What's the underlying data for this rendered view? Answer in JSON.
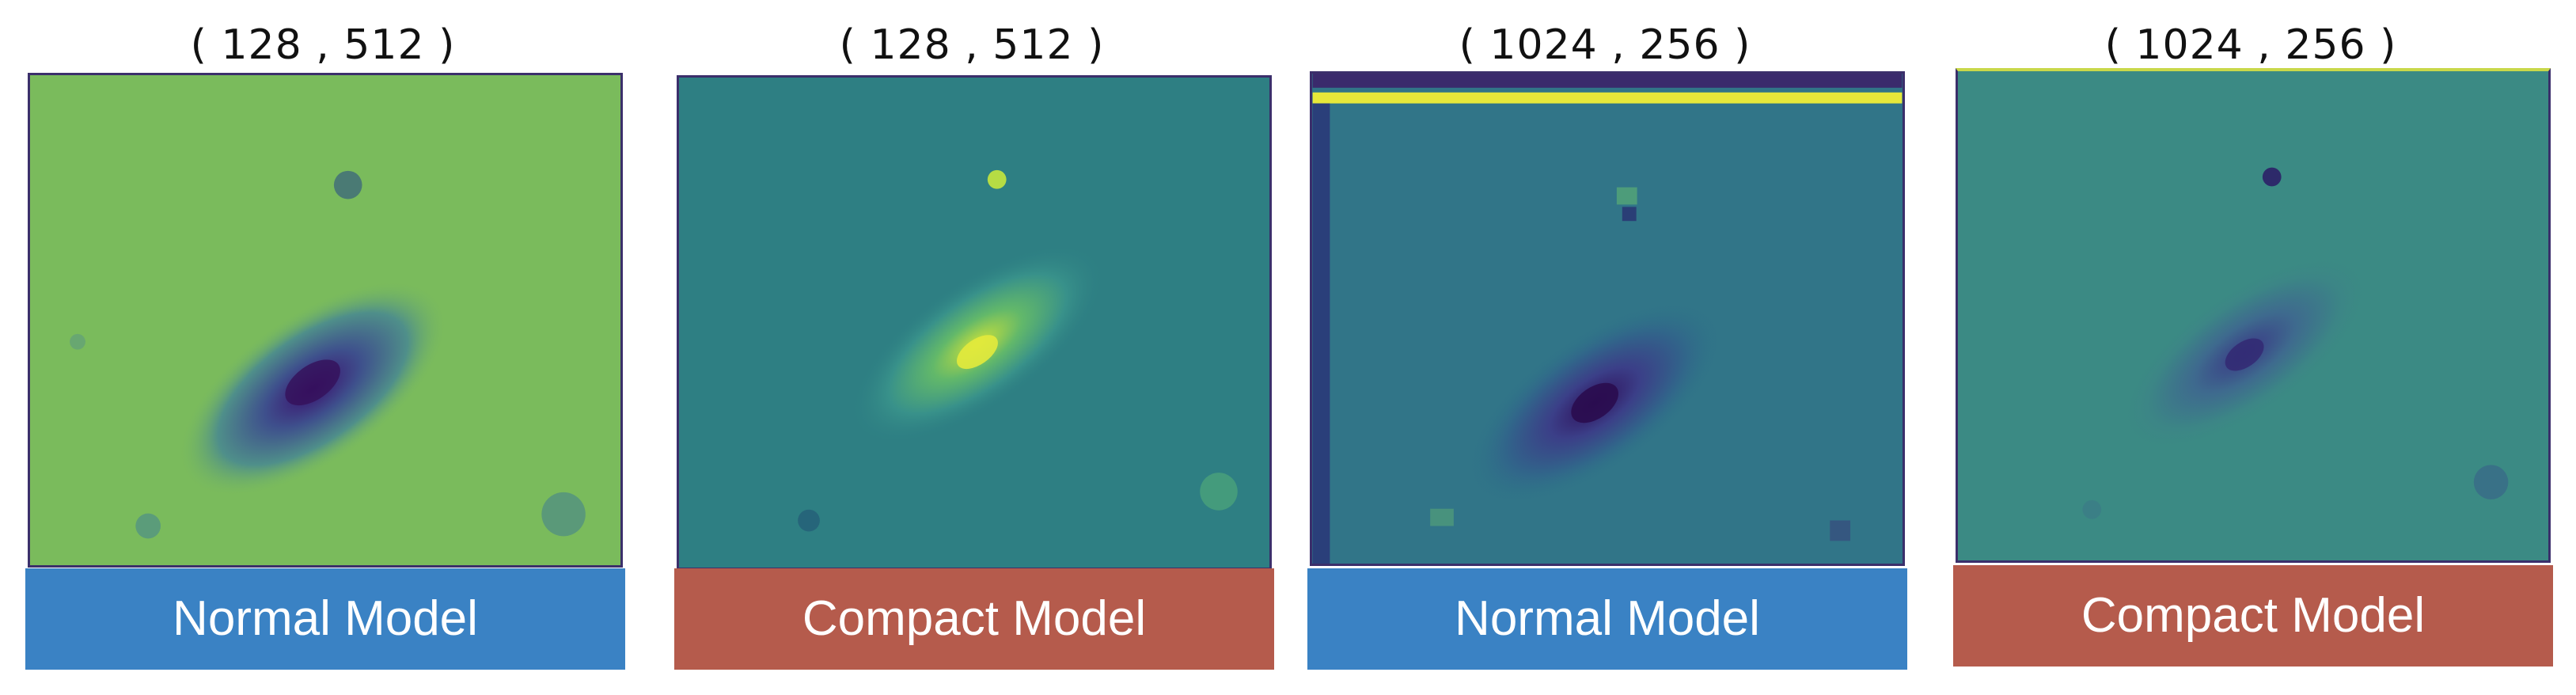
{
  "panels": [
    {
      "title": "( 128 , 512 )",
      "label": "Normal Model",
      "label_color": "#3a82c4",
      "map_style": "light-green-dark-core"
    },
    {
      "title": "( 128 , 512 )",
      "label": "Compact Model",
      "label_color": "#b55b4c",
      "map_style": "teal-bright-core"
    },
    {
      "title": "( 1024 , 256 )",
      "label": "Normal Model",
      "label_color": "#3a82c4",
      "map_style": "teal-dark-core-yellow-band"
    },
    {
      "title": "( 1024 , 256 )",
      "label": "Compact Model",
      "label_color": "#b55b4c",
      "map_style": "teal-faint-dark-core"
    }
  ]
}
